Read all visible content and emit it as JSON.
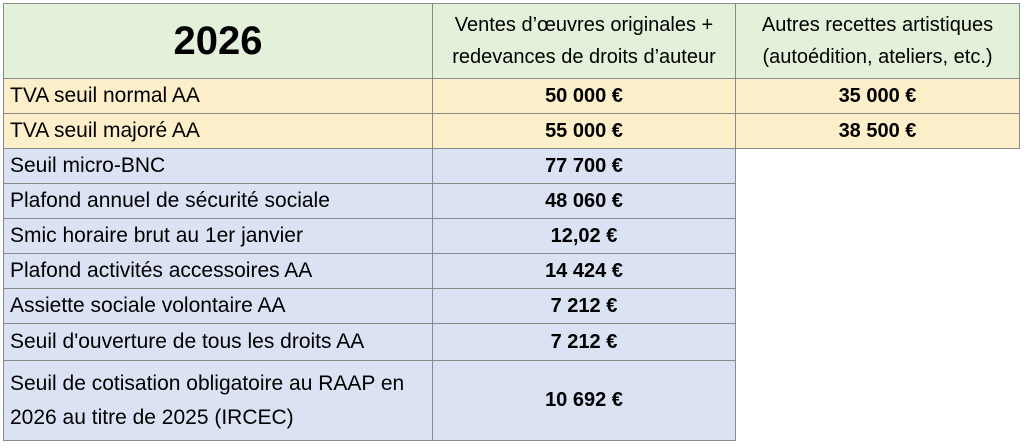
{
  "table": {
    "year": "2026",
    "columns": [
      "Ventes d’œuvres originales +\nredevances de droits d’auteur",
      "Autres recettes artistiques\n(autoédition, ateliers, etc.)"
    ],
    "tva_rows": [
      {
        "label": "TVA seuil normal AA",
        "values": [
          "50 000 €",
          "35 000 €"
        ]
      },
      {
        "label": "TVA seuil majoré AA",
        "values": [
          "55 000 €",
          "38 500 €"
        ]
      }
    ],
    "rows": [
      {
        "label": "Seuil micro-BNC",
        "value": "77 700 €"
      },
      {
        "label": "Plafond annuel de sécurité sociale",
        "value": "48 060 €"
      },
      {
        "label": "Smic horaire brut au 1er janvier",
        "value": "12,02 €"
      },
      {
        "label": "Plafond activités accessoires AA",
        "value": "14 424 €"
      },
      {
        "label": "Assiette sociale volontaire AA",
        "value": "7 212 €"
      },
      {
        "label": "Seuil d'ouverture de tous les droits AA",
        "value": "7 212 €"
      },
      {
        "label": "Seuil de cotisation obligatoire au RAAP en\n2026 au titre de 2025 (IRCEC)",
        "value": "10 692 €"
      }
    ]
  }
}
